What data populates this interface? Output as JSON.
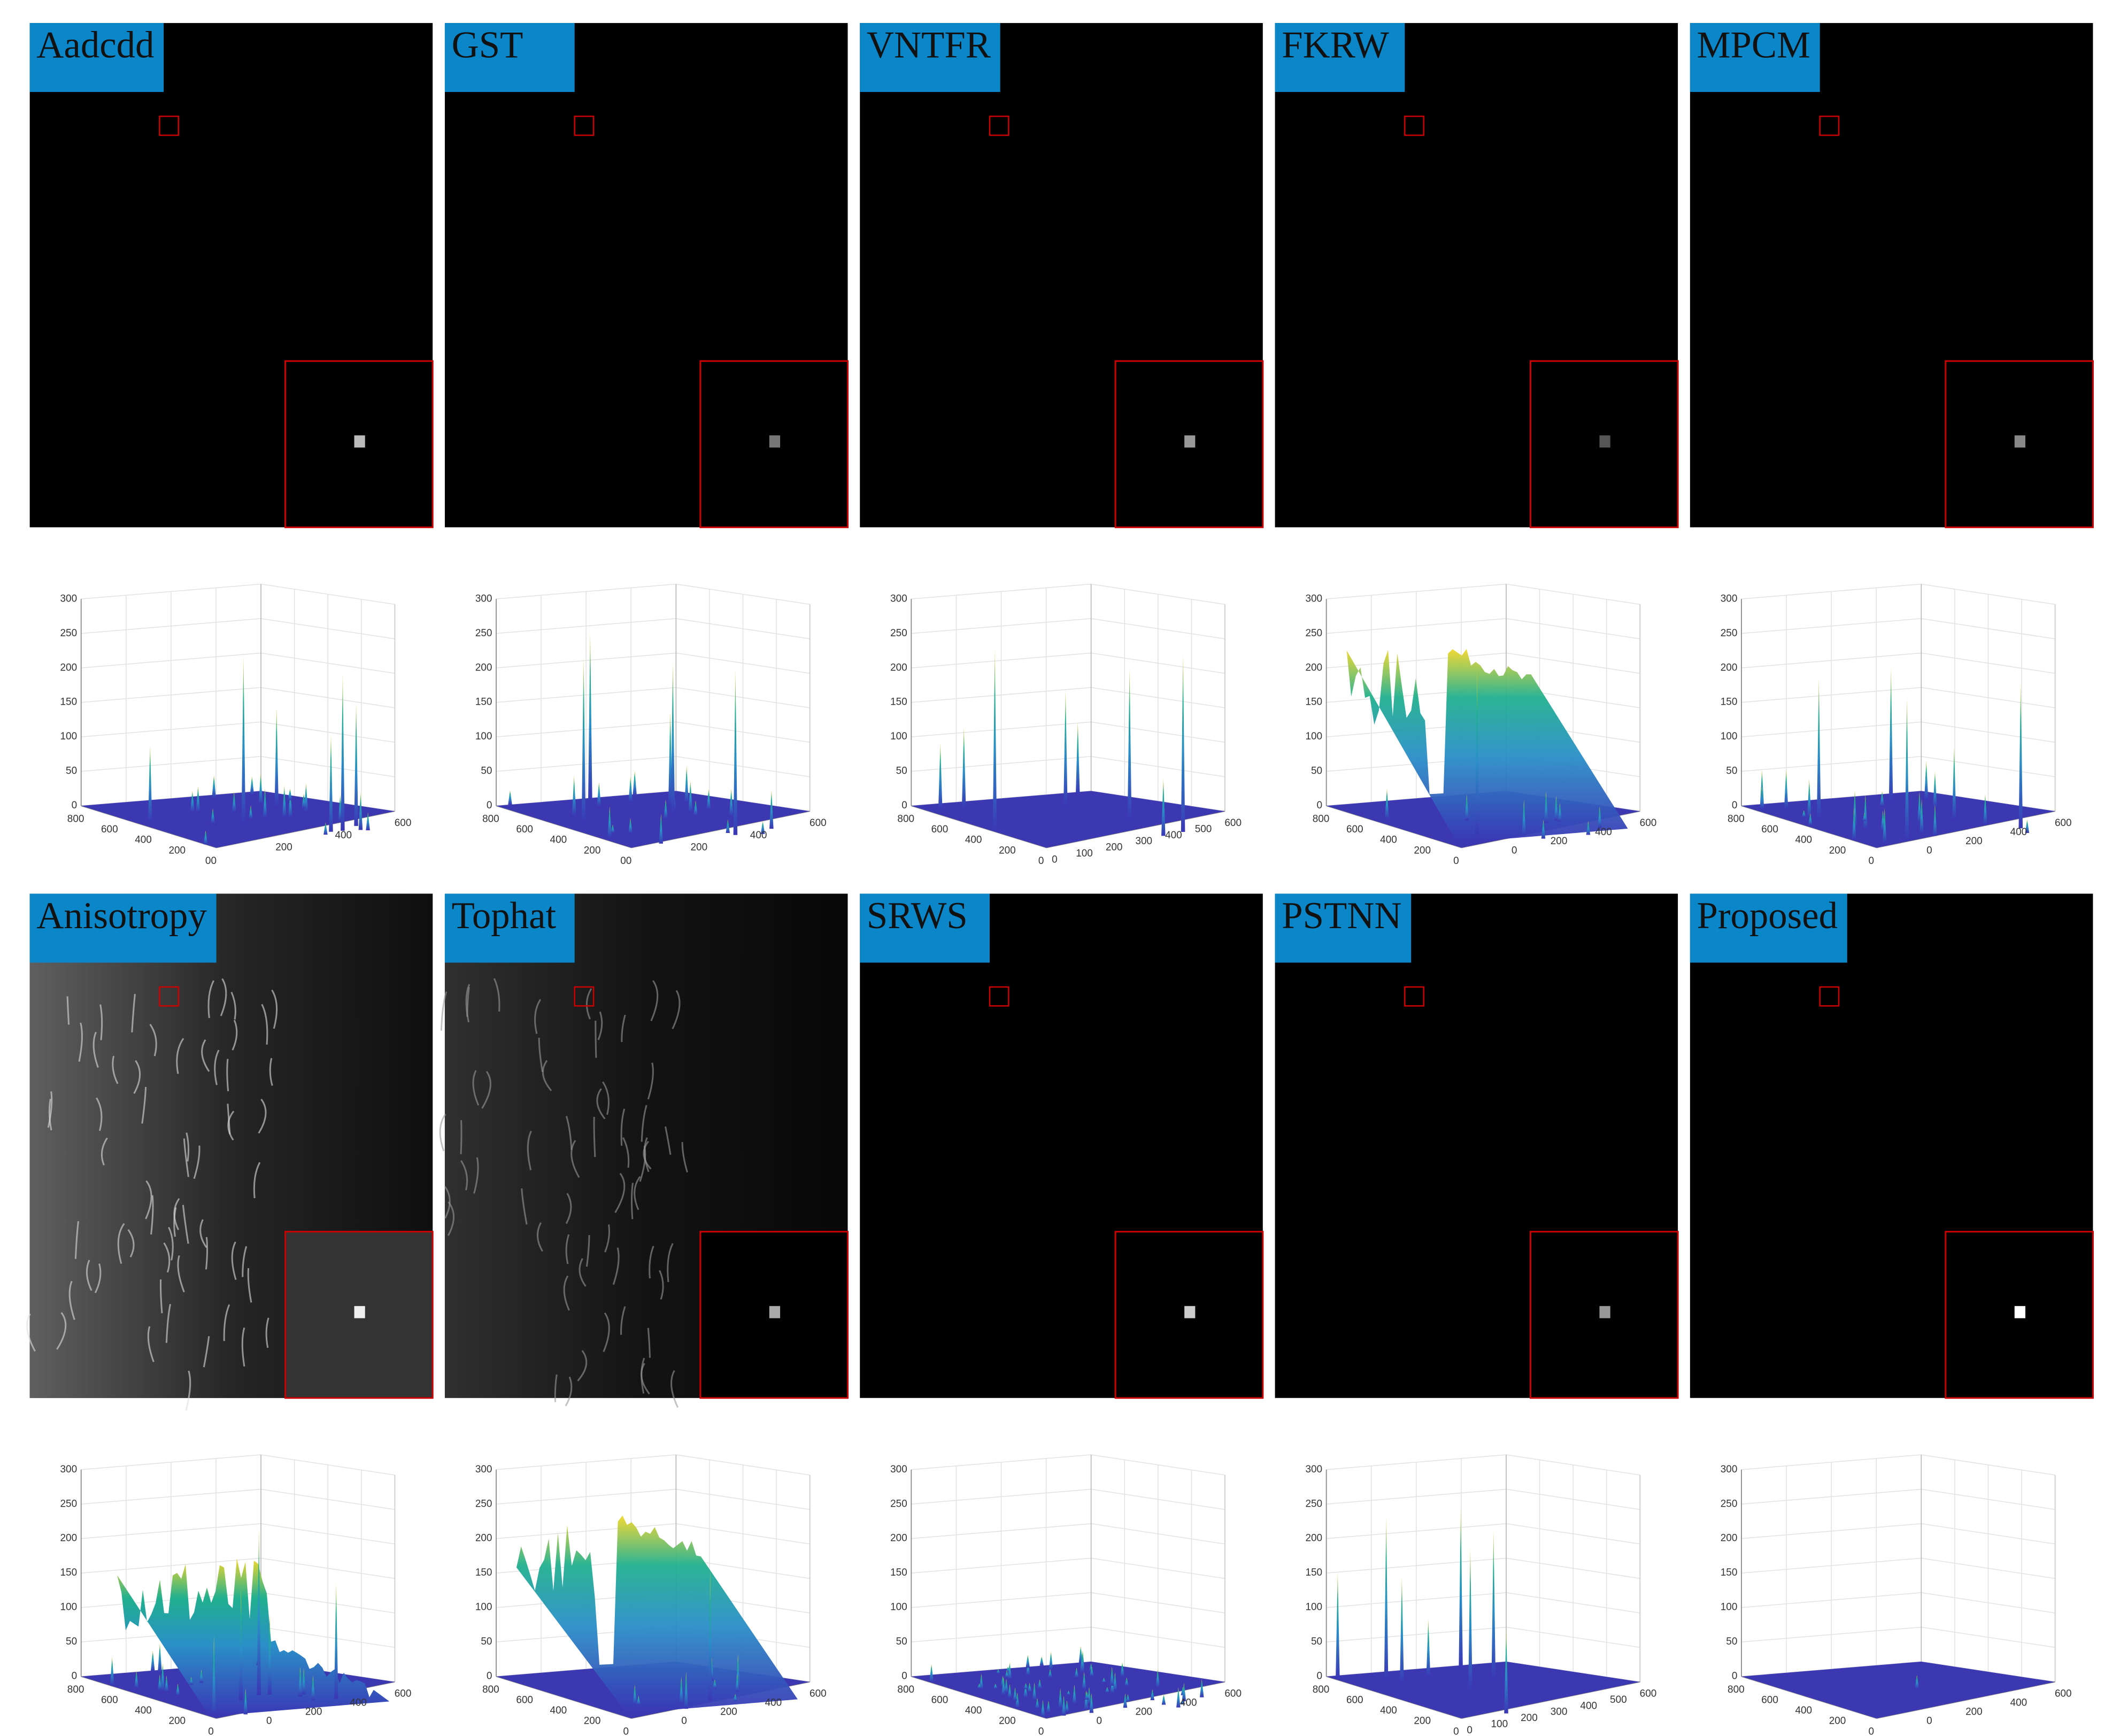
{
  "panels": [
    {
      "label": "Aadcdd",
      "zticks": [
        "0",
        "50",
        "100",
        "150",
        "200",
        "250",
        "300"
      ],
      "left_ticks": [
        "800",
        "600",
        "400",
        "200",
        "00"
      ],
      "right_ticks": [
        "200",
        "400",
        "600"
      ]
    },
    {
      "label": "GST",
      "zticks": [
        "0",
        "50",
        "100",
        "150",
        "200",
        "250",
        "300"
      ],
      "left_ticks": [
        "800",
        "600",
        "400",
        "200",
        "00"
      ],
      "right_ticks": [
        "200",
        "400",
        "600"
      ]
    },
    {
      "label": "VNTFR",
      "zticks": [
        "0",
        "50",
        "100",
        "150",
        "200",
        "250",
        "300"
      ],
      "left_ticks": [
        "800",
        "600",
        "400",
        "200",
        "0"
      ],
      "right_ticks": [
        "0",
        "100",
        "200",
        "300",
        "400",
        "500",
        "600"
      ]
    },
    {
      "label": "FKRW",
      "zticks": [
        "0",
        "50",
        "100",
        "150",
        "200",
        "250",
        "300"
      ],
      "left_ticks": [
        "800",
        "600",
        "400",
        "200",
        "0"
      ],
      "right_ticks": [
        "0",
        "200",
        "400",
        "600"
      ]
    },
    {
      "label": "MPCM",
      "zticks": [
        "0",
        "50",
        "100",
        "150",
        "200",
        "250",
        "300"
      ],
      "left_ticks": [
        "800",
        "600",
        "400",
        "200",
        "0"
      ],
      "right_ticks": [
        "0",
        "200",
        "400",
        "600"
      ]
    },
    {
      "label": "Anisotropy",
      "zticks": [
        "0",
        "50",
        "100",
        "150",
        "200",
        "250",
        "300"
      ],
      "left_ticks": [
        "800",
        "600",
        "400",
        "200",
        "0"
      ],
      "right_ticks": [
        "0",
        "200",
        "400",
        "600"
      ]
    },
    {
      "label": "Tophat",
      "zticks": [
        "0",
        "50",
        "100",
        "150",
        "200",
        "250",
        "300"
      ],
      "left_ticks": [
        "800",
        "600",
        "400",
        "200",
        "0"
      ],
      "right_ticks": [
        "0",
        "200",
        "400",
        "600"
      ]
    },
    {
      "label": "SRWS",
      "zticks": [
        "0",
        "50",
        "100",
        "150",
        "200",
        "250",
        "300"
      ],
      "left_ticks": [
        "800",
        "600",
        "400",
        "200",
        "0"
      ],
      "right_ticks": [
        "0",
        "200",
        "400",
        "600"
      ]
    },
    {
      "label": "PSTNN",
      "zticks": [
        "0",
        "50",
        "100",
        "150",
        "200",
        "250",
        "300"
      ],
      "left_ticks": [
        "800",
        "600",
        "400",
        "200",
        "0"
      ],
      "right_ticks": [
        "0",
        "100",
        "200",
        "300",
        "400",
        "500",
        "600"
      ]
    },
    {
      "label": "Proposed",
      "zticks": [
        "0",
        "50",
        "100",
        "150",
        "200",
        "250",
        "300"
      ],
      "left_ticks": [
        "800",
        "600",
        "400",
        "200",
        "0"
      ],
      "right_ticks": [
        "0",
        "200",
        "400",
        "600"
      ]
    }
  ]
}
